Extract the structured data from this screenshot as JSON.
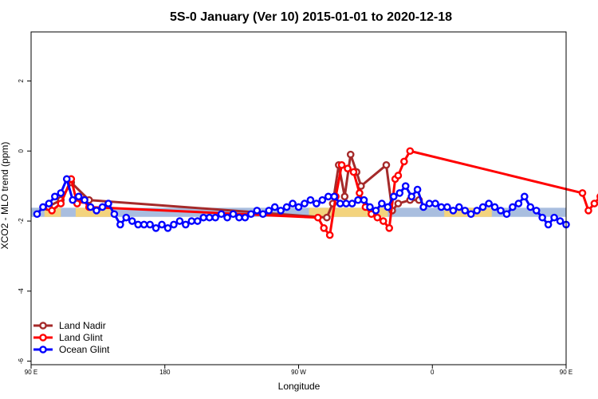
{
  "chart_data": {
    "type": "line",
    "title": "5S-0 January (Ver 10)   2015-01-01 to 2020-12-18",
    "xlabel": "Longitude",
    "ylabel": "XCO2 - MLO trend (ppm)",
    "xlim": [
      90,
      450
    ],
    "ylim": [
      -6.1,
      3.4
    ],
    "x_ticks": [
      {
        "value": 90,
        "label": "90 E"
      },
      {
        "value": 180,
        "label": "180"
      },
      {
        "value": 270,
        "label": "90 W"
      },
      {
        "value": 360,
        "label": "0"
      },
      {
        "value": 450,
        "label": "90 E"
      },
      {
        "value": 540,
        "label": "180"
      }
    ],
    "y_ticks": [
      {
        "value": -6,
        "label": "-6"
      },
      {
        "value": -4,
        "label": "-4"
      },
      {
        "value": -2,
        "label": "-2"
      },
      {
        "value": 0,
        "label": "0"
      },
      {
        "value": 2,
        "label": "2"
      }
    ],
    "grid": false,
    "legend_position": "bottom-left",
    "band": {
      "y_min": -1.88,
      "y_max": -1.62,
      "ocean_color": "#a9bedf",
      "land_color": "#f3d37d"
    },
    "land_ranges": [
      [
        99,
        110
      ],
      [
        120,
        145
      ],
      [
        277,
        330
      ],
      [
        368,
        400
      ],
      [
        468,
        490
      ],
      [
        495,
        505
      ]
    ],
    "series": [
      {
        "name": "Land Nadir",
        "color": "#a52a2a",
        "x": [
          101,
          110,
          117,
          129,
          289,
          293,
          297,
          301,
          305,
          309,
          312,
          329,
          333,
          337,
          345,
          351
        ],
        "y": [
          -1.6,
          -1.4,
          -0.9,
          -1.4,
          -1.9,
          -1.5,
          -0.4,
          -1.3,
          -0.1,
          -0.6,
          -1.0,
          -0.4,
          -1.7,
          -1.5,
          -1.4,
          -1.4
        ]
      },
      {
        "name": "Land Glint",
        "color": "#ff0000",
        "x": [
          102,
          104,
          110,
          117,
          121,
          125,
          129,
          283,
          287,
          291,
          295,
          299,
          303,
          307,
          311,
          315,
          319,
          323,
          327,
          331,
          335,
          337,
          341,
          345,
          461,
          465,
          469,
          473,
          477,
          481,
          485
        ],
        "y": [
          -1.6,
          -1.7,
          -1.5,
          -0.8,
          -1.5,
          -1.4,
          -1.6,
          -1.9,
          -2.2,
          -2.4,
          -1.3,
          -0.4,
          -0.5,
          -0.6,
          -1.2,
          -1.6,
          -1.8,
          -1.9,
          -2.0,
          -2.2,
          -0.8,
          -0.7,
          -0.3,
          0.0,
          -1.2,
          -1.7,
          -1.5,
          -1.3,
          -1.4,
          -1.5,
          -1.6
        ]
      },
      {
        "name": "Ocean Glint",
        "color": "#0000ff",
        "x": [
          94,
          98,
          102,
          106,
          110,
          114,
          118,
          122,
          126,
          130,
          134,
          138,
          142,
          146,
          150,
          154,
          158,
          162,
          166,
          170,
          174,
          178,
          182,
          186,
          190,
          194,
          198,
          202,
          206,
          210,
          214,
          218,
          222,
          226,
          230,
          234,
          238,
          242,
          246,
          250,
          254,
          258,
          262,
          266,
          270,
          274,
          278,
          282,
          286,
          290,
          294,
          298,
          302,
          306,
          310,
          314,
          318,
          322,
          326,
          330,
          334,
          338,
          342,
          346,
          350,
          354,
          358,
          362,
          366,
          370,
          374,
          378,
          382,
          386,
          390,
          394,
          398,
          402,
          406,
          410,
          414,
          418,
          422,
          426,
          430,
          434,
          438,
          442,
          446,
          450
        ],
        "y": [
          -1.8,
          -1.6,
          -1.5,
          -1.3,
          -1.2,
          -0.8,
          -1.4,
          -1.3,
          -1.4,
          -1.6,
          -1.7,
          -1.6,
          -1.5,
          -1.8,
          -2.1,
          -1.9,
          -2.0,
          -2.1,
          -2.1,
          -2.1,
          -2.2,
          -2.1,
          -2.2,
          -2.1,
          -2.0,
          -2.1,
          -2.0,
          -2.0,
          -1.9,
          -1.9,
          -1.9,
          -1.8,
          -1.9,
          -1.8,
          -1.9,
          -1.9,
          -1.8,
          -1.7,
          -1.8,
          -1.7,
          -1.6,
          -1.7,
          -1.6,
          -1.5,
          -1.6,
          -1.5,
          -1.4,
          -1.5,
          -1.4,
          -1.3,
          -1.3,
          -1.5,
          -1.5,
          -1.5,
          -1.4,
          -1.4,
          -1.6,
          -1.7,
          -1.5,
          -1.6,
          -1.3,
          -1.2,
          -1.0,
          -1.3,
          -1.1,
          -1.6,
          -1.5,
          -1.5,
          -1.6,
          -1.6,
          -1.7,
          -1.6,
          -1.7,
          -1.8,
          -1.7,
          -1.6,
          -1.5,
          -1.6,
          -1.7,
          -1.8,
          -1.6,
          -1.5,
          -1.3,
          -1.6,
          -1.7,
          -1.9,
          -2.1,
          -1.9,
          -2.0,
          -2.1
        ]
      }
    ]
  }
}
